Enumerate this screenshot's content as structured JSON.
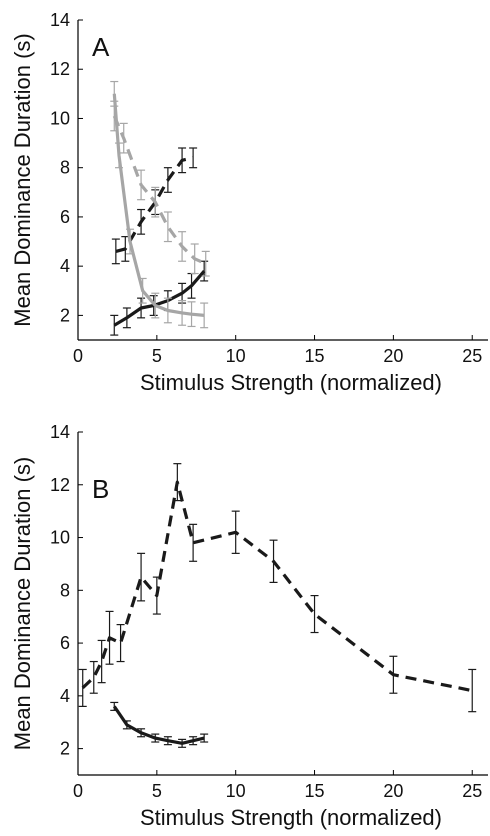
{
  "figure": {
    "xlabel": "Stimulus Strength (normalized)",
    "ylabel": "Mean Dominance Duration (s)"
  },
  "colors": {
    "dark": "#1a1a1a",
    "gray": "#a6a6a6",
    "axis": "#000000"
  },
  "chart_data": [
    {
      "type": "line",
      "panel_label": "A",
      "xlabel": "Stimulus Strength (normalized)",
      "ylabel": "Mean Dominance Duration (s)",
      "xlim": [
        0,
        26
      ],
      "ylim": [
        1,
        14
      ],
      "xticks": [
        0,
        5,
        10,
        15,
        20,
        25
      ],
      "yticks": [
        2,
        4,
        6,
        8,
        10,
        12,
        14
      ],
      "grid": false,
      "series": [
        {
          "color": "dark",
          "style": "solid",
          "x": [
            2.3,
            3.1,
            4.0,
            4.8,
            5.7,
            6.6,
            7.2,
            8.0
          ],
          "y": [
            1.6,
            1.9,
            2.3,
            2.4,
            2.6,
            2.9,
            3.2,
            3.8
          ],
          "err": [
            0.4,
            0.4,
            0.4,
            0.4,
            0.4,
            0.4,
            0.5,
            0.4
          ]
        },
        {
          "color": "dark",
          "style": "dashed",
          "x": [
            2.4,
            3.0,
            4.0,
            4.9,
            5.7,
            6.6,
            7.3
          ],
          "y": [
            4.6,
            4.7,
            5.8,
            6.6,
            7.5,
            8.3,
            8.4
          ],
          "err": [
            0.5,
            0.5,
            0.5,
            0.5,
            0.5,
            0.5,
            0.4
          ]
        },
        {
          "color": "gray",
          "style": "solid",
          "x": [
            2.3,
            2.6,
            3.3,
            4.1,
            4.9,
            5.7,
            6.6,
            7.2,
            8.0
          ],
          "y": [
            11.0,
            8.5,
            5.0,
            3.0,
            2.4,
            2.2,
            2.1,
            2.05,
            2.0
          ],
          "err": [
            0.5,
            0.5,
            0.5,
            0.5,
            0.5,
            0.5,
            0.5,
            0.5,
            0.5
          ]
        },
        {
          "color": "gray",
          "style": "dashed",
          "x": [
            2.3,
            2.9,
            4.0,
            4.9,
            5.7,
            6.6,
            7.4,
            8.1
          ],
          "y": [
            10.1,
            9.2,
            7.3,
            6.6,
            5.6,
            4.8,
            4.3,
            4.1
          ],
          "err": [
            0.6,
            0.6,
            0.6,
            0.6,
            0.6,
            0.6,
            0.6,
            0.5
          ]
        }
      ]
    },
    {
      "type": "line",
      "panel_label": "B",
      "xlabel": "Stimulus Strength (normalized)",
      "ylabel": "Mean Dominance Duration (s)",
      "xlim": [
        0,
        26
      ],
      "ylim": [
        1,
        14
      ],
      "xticks": [
        0,
        5,
        10,
        15,
        20,
        25
      ],
      "yticks": [
        2,
        4,
        6,
        8,
        10,
        12,
        14
      ],
      "grid": false,
      "series": [
        {
          "color": "dark",
          "style": "dashed",
          "x": [
            0.3,
            1.0,
            1.5,
            2.0,
            2.7,
            4.0,
            5.0,
            6.3,
            7.3,
            10.0,
            12.4,
            15.0,
            20.0,
            25.0
          ],
          "y": [
            4.3,
            4.7,
            5.3,
            6.2,
            6.0,
            8.5,
            7.8,
            12.1,
            9.8,
            10.2,
            9.1,
            7.1,
            4.8,
            4.2
          ],
          "err": [
            0.7,
            0.6,
            0.8,
            1.0,
            0.7,
            0.9,
            0.7,
            0.7,
            0.7,
            0.8,
            0.8,
            0.7,
            0.7,
            0.8
          ]
        },
        {
          "color": "dark",
          "style": "solid",
          "x": [
            2.3,
            3.1,
            4.0,
            4.9,
            5.7,
            6.6,
            7.3,
            8.0
          ],
          "y": [
            3.6,
            2.9,
            2.6,
            2.4,
            2.3,
            2.2,
            2.3,
            2.4
          ],
          "err": [
            0.15,
            0.15,
            0.15,
            0.15,
            0.15,
            0.15,
            0.15,
            0.15
          ]
        }
      ]
    }
  ]
}
